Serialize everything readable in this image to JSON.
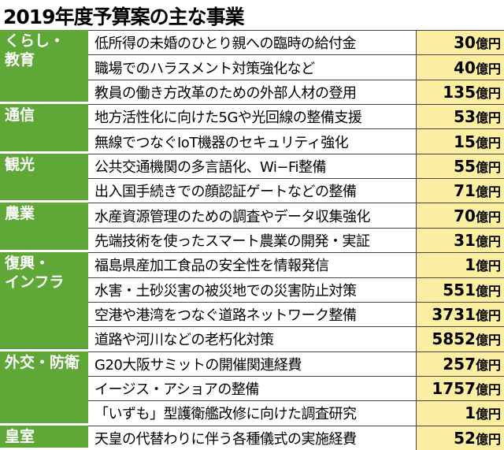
{
  "header": {
    "title": "2019年度予算案の主な事業"
  },
  "groups": [
    {
      "name_lines": [
        "くらし・",
        "教育"
      ],
      "rows": [
        {
          "item": "低所得の未婚のひとり親への臨時の給付金",
          "amount": 30,
          "unit": "億円"
        },
        {
          "item": "職場でのハラスメント対策強化など",
          "amount": 40,
          "unit": "億円"
        },
        {
          "item": "教員の働き方改革のための外部人材の登用",
          "amount": 135,
          "unit": "億円"
        }
      ]
    },
    {
      "name_lines": [
        "通信"
      ],
      "rows": [
        {
          "item": "地方活性化に向けた5Gや光回線の整備支援",
          "amount": 53,
          "unit": "億円"
        },
        {
          "item": "無線でつなぐIoT機器のセキュリティ強化",
          "amount": 15,
          "unit": "億円"
        }
      ]
    },
    {
      "name_lines": [
        "観光"
      ],
      "rows": [
        {
          "item": "公共交通機関の多言語化、Wi−Fi整備",
          "amount": 55,
          "unit": "億円"
        },
        {
          "item": "出入国手続きでの顔認証ゲートなどの整備",
          "amount": 71,
          "unit": "億円"
        }
      ]
    },
    {
      "name_lines": [
        "農業"
      ],
      "rows": [
        {
          "item": "水産資源管理のための調査やデータ収集強化",
          "amount": 70,
          "unit": "億円"
        },
        {
          "item": "先端技術を使ったスマート農業の開発・実証",
          "amount": 31,
          "unit": "億円"
        }
      ]
    },
    {
      "name_lines": [
        "復興・",
        "インフラ"
      ],
      "rows": [
        {
          "item": "福島県産加工食品の安全性を情報発信",
          "amount": 1,
          "unit": "億円"
        },
        {
          "item": "水害・土砂災害の被災地での災害防止対策",
          "amount": 551,
          "unit": "億円"
        },
        {
          "item": "空港や港湾をつなぐ道路ネットワーク整備",
          "amount": 3731,
          "unit": "億円"
        },
        {
          "item": "道路や河川などの老朽化対策",
          "amount": 5852,
          "unit": "億円"
        }
      ]
    },
    {
      "name_lines": [
        "外交・防衛"
      ],
      "rows": [
        {
          "item": "G20大阪サミットの開催関連経費",
          "amount": 257,
          "unit": "億円"
        },
        {
          "item": "イージス・アショアの整備",
          "amount": 1757,
          "unit": "億円"
        },
        {
          "item": "「いずも」型護衛艦改修に向けた調査研究",
          "amount": 1,
          "unit": "億円"
        }
      ]
    },
    {
      "name_lines": [
        "皇室"
      ],
      "rows": [
        {
          "item": "天皇の代替わりに伴う各種儀式の実施経費",
          "amount": 52,
          "unit": "億円"
        }
      ]
    }
  ]
}
